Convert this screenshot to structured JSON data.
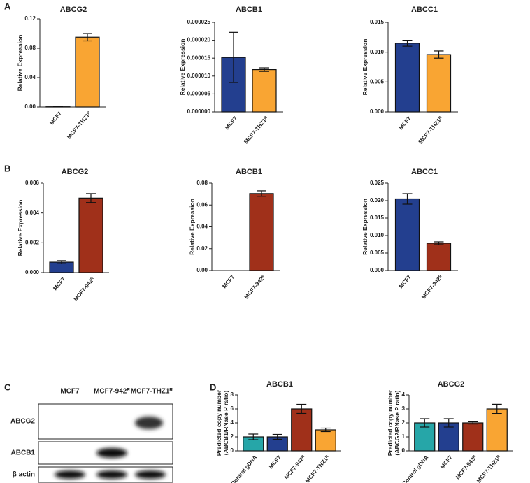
{
  "panel_labels": [
    "A",
    "B",
    "C",
    "D"
  ],
  "chart_data": [
    {
      "type": "bar",
      "title": "ABCG2",
      "ylabel": [
        "Relative Expression"
      ],
      "categories": [
        "MCF7",
        "MCF7-THZ1ᴿ"
      ],
      "values": [
        0.0003,
        0.095
      ],
      "errors": [
        0.0001,
        0.005
      ],
      "colors": [
        "#233f8f",
        "#f9a533"
      ],
      "ylim": [
        0,
        0.12
      ],
      "yticks": [
        {
          "value": 0,
          "label": "0.00"
        },
        {
          "value": 0.04,
          "label": "0.04"
        },
        {
          "value": 0.08,
          "label": "0.08"
        },
        {
          "value": 0.12,
          "label": "0.12"
        }
      ]
    },
    {
      "type": "bar",
      "title": "ABCB1",
      "ylabel": [
        "Relative Expression"
      ],
      "categories": [
        "MCF7",
        "MCF7-THZ1ᴿ"
      ],
      "values": [
        1.52e-05,
        1.18e-05
      ],
      "errors": [
        7e-06,
        5e-07
      ],
      "colors": [
        "#233f8f",
        "#f9a533"
      ],
      "ylim": [
        0,
        2.5e-05
      ],
      "yticks": [
        {
          "value": 0,
          "label": "0.000000"
        },
        {
          "value": 5e-06,
          "label": "0.000005"
        },
        {
          "value": 1e-05,
          "label": "0.000010"
        },
        {
          "value": 1.5e-05,
          "label": "0.000015"
        },
        {
          "value": 2e-05,
          "label": "0.000020"
        },
        {
          "value": 2.5e-05,
          "label": "0.000025"
        }
      ]
    },
    {
      "type": "bar",
      "title": "ABCC1",
      "ylabel": [
        "Relative Expression"
      ],
      "categories": [
        "MCF7",
        "MCF7-THZ1ᴿ"
      ],
      "values": [
        0.0115,
        0.0096
      ],
      "errors": [
        0.0005,
        0.0006
      ],
      "colors": [
        "#233f8f",
        "#f9a533"
      ],
      "ylim": [
        0,
        0.015
      ],
      "yticks": [
        {
          "value": 0,
          "label": "0.000"
        },
        {
          "value": 0.005,
          "label": "0.005"
        },
        {
          "value": 0.01,
          "label": "0.010"
        },
        {
          "value": 0.015,
          "label": "0.015"
        }
      ]
    },
    {
      "type": "bar",
      "title": "ABCG2",
      "ylabel": [
        "Relative Expression"
      ],
      "categories": [
        "MCF7",
        "MCF7-942ᴿ"
      ],
      "values": [
        0.0007,
        0.005
      ],
      "errors": [
        0.0001,
        0.0003
      ],
      "colors": [
        "#233f8f",
        "#a0301a"
      ],
      "ylim": [
        0,
        0.006
      ],
      "yticks": [
        {
          "value": 0,
          "label": "0.000"
        },
        {
          "value": 0.002,
          "label": "0.002"
        },
        {
          "value": 0.004,
          "label": "0.004"
        },
        {
          "value": 0.006,
          "label": "0.006"
        }
      ]
    },
    {
      "type": "bar",
      "title": "ABCB1",
      "ylabel": [
        "Relative Expression"
      ],
      "categories": [
        "MCF7",
        "MCF7-942ᴿ"
      ],
      "values": [
        0,
        0.0705
      ],
      "errors": [
        0,
        0.0025
      ],
      "colors": [
        "#233f8f",
        "#a0301a"
      ],
      "ylim": [
        0,
        0.08
      ],
      "yticks": [
        {
          "value": 0,
          "label": "0.00"
        },
        {
          "value": 0.02,
          "label": "0.02"
        },
        {
          "value": 0.04,
          "label": "0.04"
        },
        {
          "value": 0.06,
          "label": "0.06"
        },
        {
          "value": 0.08,
          "label": "0.08"
        }
      ]
    },
    {
      "type": "bar",
      "title": "ABCC1",
      "ylabel": [
        "Relative Expression"
      ],
      "categories": [
        "MCF7",
        "MCF7-942ᴿ"
      ],
      "values": [
        0.0205,
        0.0078
      ],
      "errors": [
        0.0015,
        0.0004
      ],
      "colors": [
        "#233f8f",
        "#a0301a"
      ],
      "ylim": [
        0,
        0.025
      ],
      "yticks": [
        {
          "value": 0,
          "label": "0.000"
        },
        {
          "value": 0.005,
          "label": "0.005"
        },
        {
          "value": 0.01,
          "label": "0.010"
        },
        {
          "value": 0.015,
          "label": "0.015"
        },
        {
          "value": 0.02,
          "label": "0.020"
        },
        {
          "value": 0.025,
          "label": "0.025"
        }
      ]
    },
    {
      "type": "bar",
      "title": "ABCB1",
      "ylabel": [
        "Predicted copy number",
        "(ABCB1/RNase P ratio)"
      ],
      "categories": [
        "Control gDNA",
        "MCF7",
        "MCF7-942ᴿ",
        "MCF7-THZ1ᴿ"
      ],
      "values": [
        2,
        2,
        6,
        3
      ],
      "errors": [
        0.4,
        0.35,
        0.65,
        0.25
      ],
      "colors": [
        "#26a6a8",
        "#233f8f",
        "#a0301a",
        "#f9a533"
      ],
      "ylim": [
        0,
        8
      ],
      "yticks": [
        0,
        2,
        4,
        6,
        8
      ]
    },
    {
      "type": "bar",
      "title": "ABCG2",
      "ylabel": [
        "Predicted copy number",
        "(ABCG2/RNase P ratio)"
      ],
      "categories": [
        "Control gDNA",
        "MCF7",
        "MCF7-942ᴿ",
        "MCF7-THZ1ᴿ"
      ],
      "values": [
        2,
        2,
        2,
        3
      ],
      "errors": [
        0.3,
        0.3,
        0.08,
        0.33
      ],
      "colors": [
        "#26a6a8",
        "#233f8f",
        "#a0301a",
        "#f9a533"
      ],
      "ylim": [
        0,
        4
      ],
      "yticks": [
        0,
        1,
        2,
        3,
        4
      ]
    }
  ],
  "blot": {
    "lanes": [
      "MCF7",
      "MCF7-942ᴿ",
      "MCF7-THZ1ᴿ"
    ],
    "rows": [
      "ABCG2",
      "ABCB1",
      "β actin"
    ]
  }
}
